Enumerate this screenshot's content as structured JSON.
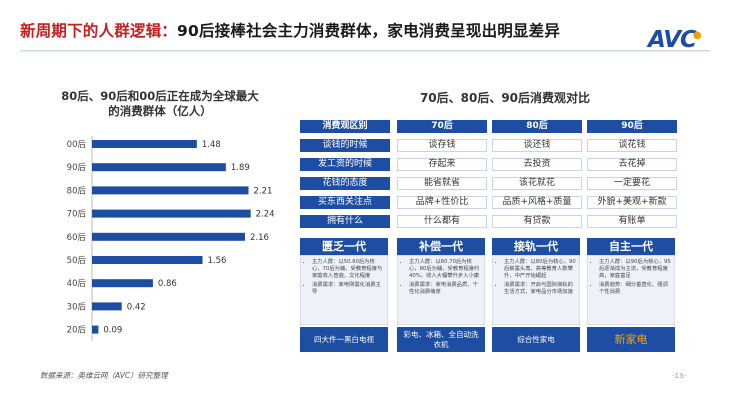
{
  "title_red": "新周期下的人群逻辑：",
  "title_rest": "90后接棒社会主力消费群体，家电消费呈现出明显差异",
  "logo": "AVC",
  "left_heading_line1": "80后、90后和00后正在成为全球最大",
  "left_heading_line2": "的消费群体（亿人）",
  "chart_data": {
    "type": "bar",
    "orientation": "horizontal",
    "categories": [
      "00后",
      "90后",
      "80后",
      "70后",
      "60后",
      "50后",
      "40后",
      "30后",
      "20后"
    ],
    "values": [
      1.48,
      1.89,
      2.21,
      2.24,
      2.16,
      1.56,
      0.86,
      0.42,
      0.09
    ],
    "ylabel": "",
    "xlabel": "",
    "xlim": [
      0,
      2.4
    ],
    "color": "#1d4ea3"
  },
  "right_heading": "70后、80后、90后消费观对比",
  "table": {
    "headers": [
      "消费观区别",
      "70后",
      "80后",
      "90后"
    ],
    "rows": [
      {
        "label": "谈钱的时候",
        "v": [
          "谈存钱",
          "谈还钱",
          "谈花钱"
        ]
      },
      {
        "label": "发工资的时候",
        "v": [
          "存起来",
          "去投资",
          "去花掉"
        ]
      },
      {
        "label": "花钱的态度",
        "v": [
          "能省就省",
          "该花就花",
          "一定要花"
        ]
      },
      {
        "label": "买东西关注点",
        "v": [
          "品牌+性价比",
          "品质+风格+质量",
          "外貌+美观+新款"
        ]
      },
      {
        "label": "拥有什么",
        "v": [
          "什么都有",
          "有贷款",
          "有账单"
        ]
      }
    ]
  },
  "generations": [
    {
      "name": "匮乏一代",
      "bullets": [
        "主力人群：以50.60后为核心，70后为辅，受教育程度与家庭收入普遍，文化程度",
        "消费需求：家电刚需化消费主导"
      ],
      "footer": "四大件一黑白电视"
    },
    {
      "name": "补偿一代",
      "bullets": [
        "主力人群：以60.70后为核心，80后为辅，受教育程度约40%，收入大幅攀升步入小康",
        "消费需求：家电消费品质、个性化消费萌芽"
      ],
      "footer": "彩电、冰箱、全自动洗衣机"
    },
    {
      "name": "接轨一代",
      "bullets": [
        "主力人群：以80后为核心，90后崭露头角，高等教育人数攀升，中产开始崛起",
        "消费需求：开启与国际接轨的生活方式，家电品分市场加速"
      ],
      "footer": "综合性家电"
    },
    {
      "name": "自主一代",
      "bullets": [
        "主力人群：以90后为核心，95后逐渐成为主流，受教育程度高，家庭富足",
        "消费趋势：细分垂直化、强调个性消费"
      ],
      "footer": "新家电"
    }
  ],
  "source": "数据来源：奥维云网（AVC）研究整理",
  "page": "-13-"
}
